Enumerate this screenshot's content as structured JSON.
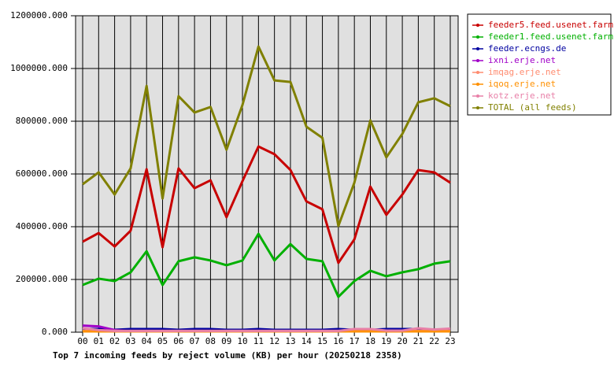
{
  "chart_data": {
    "type": "line",
    "title": "Top 7 incoming feeds by reject volume (KB) per hour (20250218 2358)",
    "categories": [
      "00",
      "01",
      "02",
      "03",
      "04",
      "05",
      "06",
      "07",
      "08",
      "09",
      "10",
      "11",
      "12",
      "13",
      "14",
      "15",
      "16",
      "17",
      "18",
      "19",
      "20",
      "21",
      "22",
      "23"
    ],
    "ylim": [
      0,
      1200000
    ],
    "yticks": [
      {
        "value": 0,
        "label": "0.000"
      },
      {
        "value": 200000,
        "label": "200000.000"
      },
      {
        "value": 400000,
        "label": "400000.000"
      },
      {
        "value": 600000,
        "label": "600000.000"
      },
      {
        "value": 800000,
        "label": "800000.000"
      },
      {
        "value": 1000000,
        "label": "1000000.000"
      },
      {
        "value": 1200000,
        "label": "1200000.000"
      }
    ],
    "grid": true,
    "legend": "right",
    "series": [
      {
        "name": "feeder5.feed.usenet.farm",
        "color": "#c80000",
        "values": [
          343000,
          376000,
          325000,
          385000,
          618000,
          322000,
          621000,
          546000,
          576000,
          436000,
          573000,
          704000,
          675000,
          615000,
          496000,
          466000,
          263000,
          352000,
          552000,
          445000,
          522000,
          615000,
          606000,
          567000
        ]
      },
      {
        "name": "feeder1.feed.usenet.farm",
        "color": "#00b000",
        "values": [
          179000,
          203000,
          194000,
          227000,
          307000,
          179000,
          269000,
          284000,
          272000,
          254000,
          272000,
          373000,
          272000,
          334000,
          278000,
          269000,
          134000,
          194000,
          233000,
          212000,
          227000,
          239000,
          260000,
          269000
        ]
      },
      {
        "name": "feeder.ecngs.de",
        "color": "#0000a0",
        "values": [
          12000,
          12000,
          9000,
          12000,
          12000,
          12000,
          9000,
          12000,
          12000,
          9000,
          9000,
          12000,
          9000,
          9000,
          9000,
          9000,
          12000,
          9000,
          9000,
          12000,
          12000,
          12000,
          9000,
          12000
        ]
      },
      {
        "name": "ixni.erje.net",
        "color": "#a000c8",
        "values": [
          25000,
          22000,
          8000,
          3000,
          3000,
          3000,
          3000,
          3000,
          3000,
          3000,
          3000,
          3000,
          3000,
          3000,
          3000,
          3000,
          3000,
          3000,
          3000,
          3000,
          3000,
          3000,
          3000,
          3000
        ]
      },
      {
        "name": "imqag.erje.net",
        "color": "#ff8c70",
        "values": [
          5000,
          5000,
          5000,
          5000,
          5000,
          5000,
          5000,
          5000,
          5000,
          5000,
          5000,
          5000,
          5000,
          5000,
          5000,
          5000,
          5000,
          5000,
          5000,
          5000,
          5000,
          5000,
          5000,
          5000
        ]
      },
      {
        "name": "iqoq.erje.net",
        "color": "#ff9000",
        "values": [
          3000,
          3000,
          3000,
          3000,
          3000,
          3000,
          3000,
          3000,
          3000,
          3000,
          3000,
          3000,
          3000,
          3000,
          3000,
          3000,
          3000,
          3000,
          3000,
          3000,
          3000,
          3000,
          3000,
          3000
        ]
      },
      {
        "name": "kotz.erje.net",
        "color": "#e880a8",
        "values": [
          15000,
          8000,
          5000,
          5000,
          5000,
          5000,
          5000,
          5000,
          5000,
          5000,
          5000,
          5000,
          5000,
          5000,
          5000,
          5000,
          5000,
          12000,
          12000,
          6000,
          6000,
          15000,
          10000,
          14000
        ]
      },
      {
        "name": "TOTAL (all feeds)",
        "color": "#808000",
        "values": [
          561000,
          606000,
          522000,
          621000,
          934000,
          507000,
          895000,
          833000,
          854000,
          692000,
          862000,
          1083000,
          955000,
          949000,
          779000,
          737000,
          403000,
          567000,
          803000,
          663000,
          752000,
          872000,
          887000,
          857000
        ]
      }
    ]
  }
}
